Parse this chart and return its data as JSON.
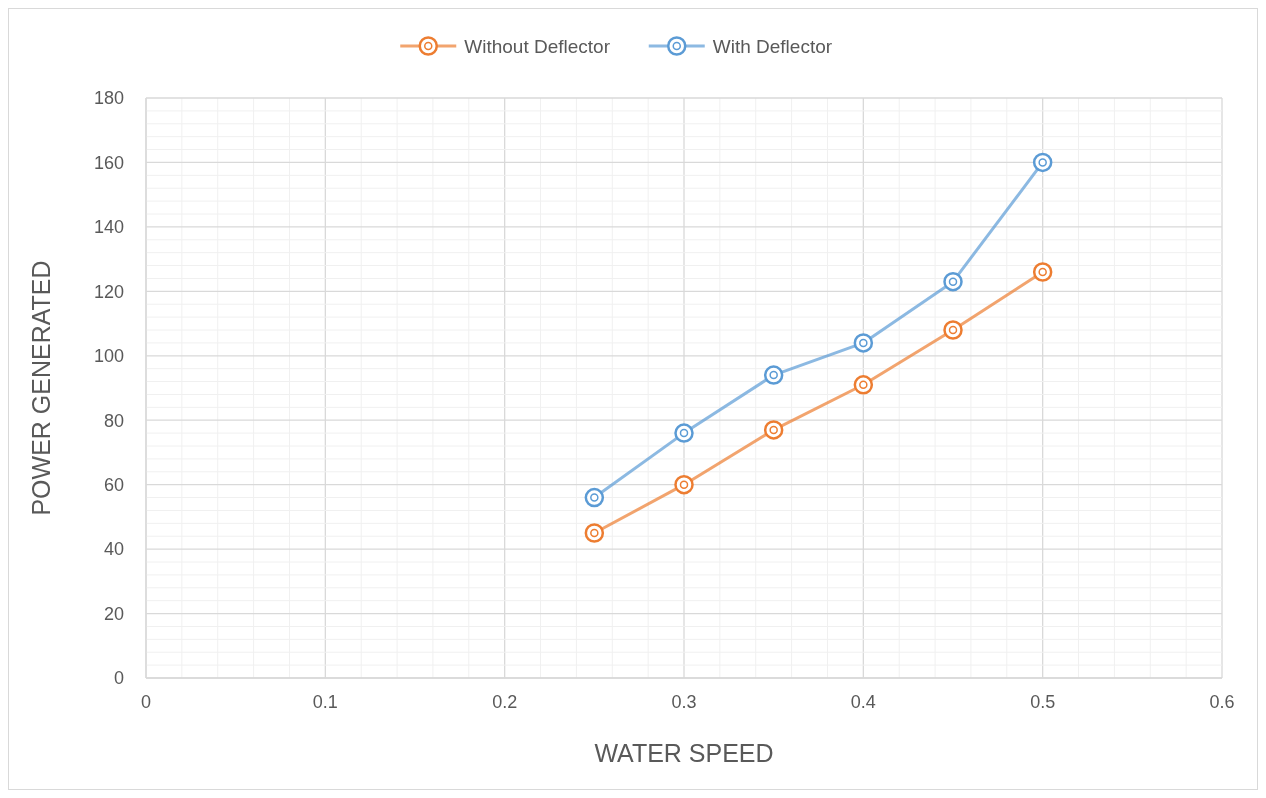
{
  "chart_data": {
    "type": "line",
    "xlabel": "WATER SPEED",
    "ylabel": "POWER GENERATED",
    "x": [
      0.25,
      0.3,
      0.35,
      0.4,
      0.45,
      0.5
    ],
    "series": [
      {
        "name": "Without Deflector",
        "color": "#ed7d31",
        "values": [
          45,
          60,
          77,
          91,
          108,
          126
        ]
      },
      {
        "name": "With Deflector",
        "color": "#5b9bd5",
        "values": [
          56,
          76,
          94,
          104,
          123,
          160
        ]
      }
    ],
    "xlim": [
      0,
      0.6
    ],
    "xticks": [
      0,
      {
        "value": 0.02,
        "label": null
      },
      {
        "value": 0.04,
        "label": null
      },
      {
        "value": 0.06,
        "label": null
      },
      {
        "value": 0.08,
        "label": null
      },
      0.1,
      {
        "value": 0.12,
        "label": null
      },
      {
        "value": 0.14,
        "label": null
      },
      {
        "value": 0.16,
        "label": null
      },
      {
        "value": 0.18,
        "label": null
      },
      0.2,
      {
        "value": 0.22,
        "label": null
      },
      {
        "value": 0.24,
        "label": null
      },
      {
        "value": 0.26,
        "label": null
      },
      {
        "value": 0.28,
        "label": null
      },
      0.3,
      {
        "value": 0.32,
        "label": null
      },
      {
        "value": 0.34,
        "label": null
      },
      {
        "value": 0.36,
        "label": null
      },
      {
        "value": 0.38,
        "label": null
      },
      0.4,
      {
        "value": 0.42,
        "label": null
      },
      {
        "value": 0.44,
        "label": null
      },
      {
        "value": 0.46,
        "label": null
      },
      {
        "value": 0.48,
        "label": null
      },
      0.5,
      {
        "value": 0.52,
        "label": null
      },
      {
        "value": 0.54,
        "label": null
      },
      {
        "value": 0.56,
        "label": null
      },
      {
        "value": 0.58,
        "label": null
      },
      0.6
    ],
    "ylim": [
      0,
      180
    ],
    "yticks": [
      0,
      {
        "value": 4,
        "label": null
      },
      {
        "value": 8,
        "label": null
      },
      {
        "value": 12,
        "label": null
      },
      {
        "value": 16,
        "label": null
      },
      20,
      {
        "value": 24,
        "label": null
      },
      {
        "value": 28,
        "label": null
      },
      {
        "value": 32,
        "label": null
      },
      {
        "value": 36,
        "label": null
      },
      40,
      {
        "value": 44,
        "label": null
      },
      {
        "value": 48,
        "label": null
      },
      {
        "value": 52,
        "label": null
      },
      {
        "value": 56,
        "label": null
      },
      60,
      {
        "value": 64,
        "label": null
      },
      {
        "value": 68,
        "label": null
      },
      {
        "value": 72,
        "label": null
      },
      {
        "value": 76,
        "label": null
      },
      80,
      {
        "value": 84,
        "label": null
      },
      {
        "value": 88,
        "label": null
      },
      {
        "value": 92,
        "label": null
      },
      {
        "value": 96,
        "label": null
      },
      100,
      {
        "value": 104,
        "label": null
      },
      {
        "value": 108,
        "label": null
      },
      {
        "value": 112,
        "label": null
      },
      {
        "value": 116,
        "label": null
      },
      120,
      {
        "value": 124,
        "label": null
      },
      {
        "value": 128,
        "label": null
      },
      {
        "value": 132,
        "label": null
      },
      {
        "value": 136,
        "label": null
      },
      140,
      {
        "value": 144,
        "label": null
      },
      {
        "value": 148,
        "label": null
      },
      {
        "value": 152,
        "label": null
      },
      {
        "value": 156,
        "label": null
      },
      160,
      {
        "value": 164,
        "label": null
      },
      {
        "value": 168,
        "label": null
      },
      {
        "value": 172,
        "label": null
      },
      {
        "value": 176,
        "label": null
      },
      180
    ],
    "grid": true,
    "legend": "top",
    "marker": "circle",
    "line_style": "solid"
  }
}
